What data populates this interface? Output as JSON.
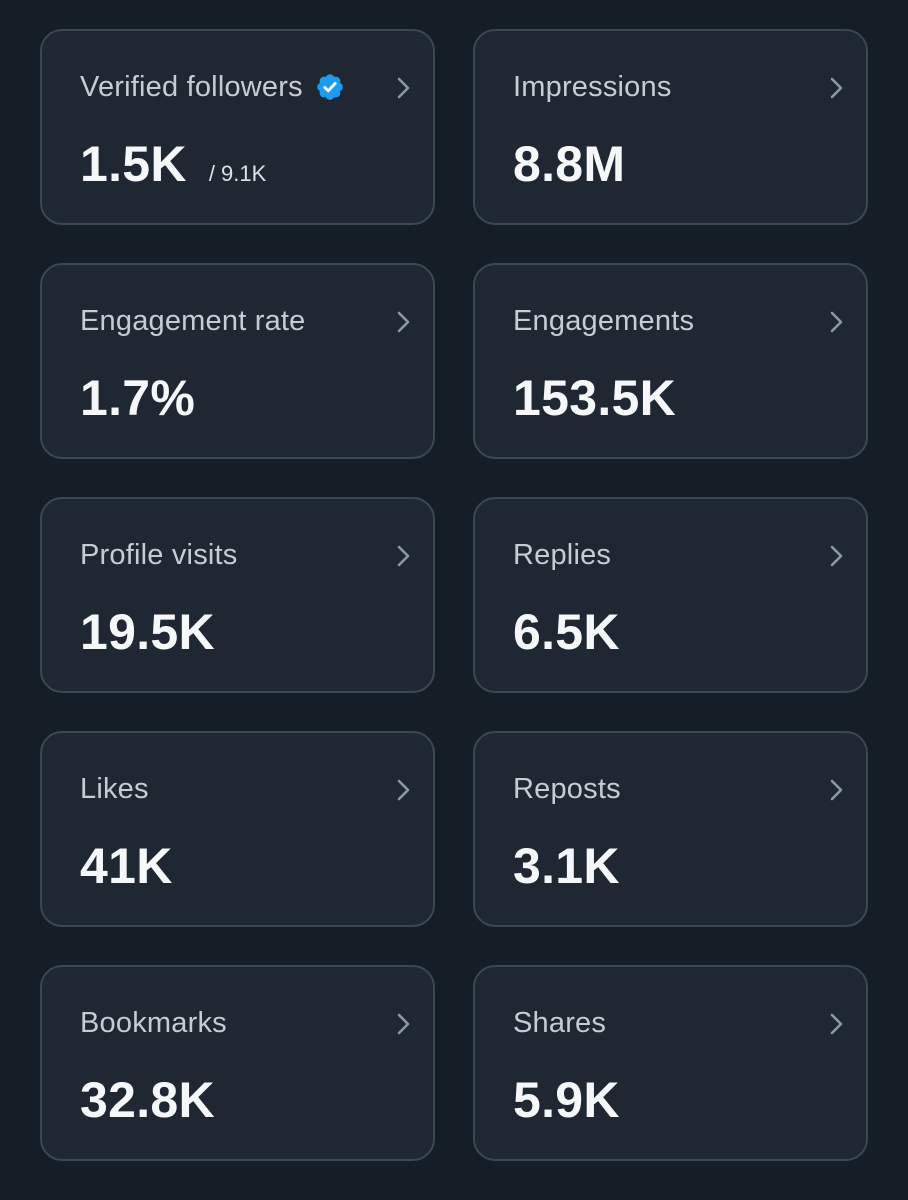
{
  "metrics": [
    {
      "label": "Verified followers",
      "value": "1.5K",
      "sub": "/ 9.1K",
      "verified_icon": "verified-badge-icon"
    },
    {
      "label": "Impressions",
      "value": "8.8M"
    },
    {
      "label": "Engagement rate",
      "value": "1.7%"
    },
    {
      "label": "Engagements",
      "value": "153.5K"
    },
    {
      "label": "Profile visits",
      "value": "19.5K"
    },
    {
      "label": "Replies",
      "value": "6.5K"
    },
    {
      "label": "Likes",
      "value": "41K"
    },
    {
      "label": "Reposts",
      "value": "3.1K"
    },
    {
      "label": "Bookmarks",
      "value": "32.8K"
    },
    {
      "label": "Shares",
      "value": "5.9K"
    }
  ],
  "colors": {
    "background": "#151d27",
    "card": "#1f2732",
    "card_border": "#3a4756",
    "label": "#c5ccd4",
    "value": "#f5f7f9",
    "verified_blue": "#1d9bf0"
  }
}
